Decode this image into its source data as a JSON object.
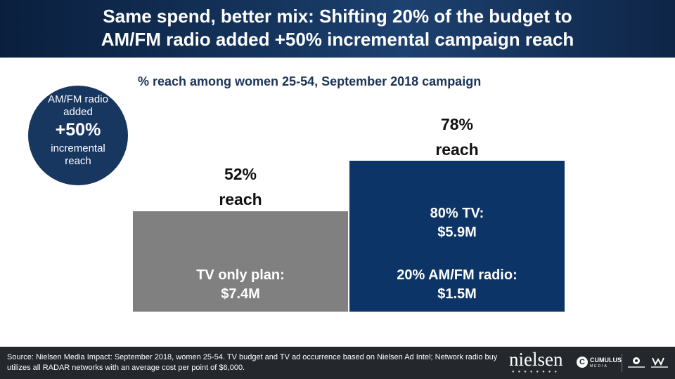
{
  "header": {
    "title_line1": "Same spend, better mix: Shifting 20% of the budget to",
    "title_line2": "AM/FM radio added +50% incremental campaign reach"
  },
  "callout": {
    "line1": "AM/FM radio",
    "line2": "added",
    "big": "+50%",
    "line3": "incremental",
    "line4": "reach"
  },
  "chart_data": {
    "type": "bar",
    "title": "% reach among women 25-54, September 2018 campaign",
    "categories": [
      "TV only plan",
      "80% TV / 20% AM/FM radio"
    ],
    "values": [
      52,
      78
    ],
    "ylim": [
      0,
      100
    ],
    "bars": [
      {
        "reach_value_label": "52%",
        "reach_word": "reach",
        "inside_lines": [
          "TV only plan:",
          "$7.4M"
        ]
      },
      {
        "reach_value_label": "78%",
        "reach_word": "reach",
        "inside_lines": [
          "80% TV:",
          "$5.9M",
          "20% AM/FM radio:",
          "$1.5M"
        ]
      }
    ],
    "colors": [
      "#808080",
      "#0d3466"
    ]
  },
  "footer": {
    "source": "Source: Nielsen Media Impact: September 2018, women 25-54. TV budget and TV ad occurrence based on Nielsen Ad Intel; Network radio buy utilizes all RADAR networks with an average cost per point of $6,000.",
    "nielsen_logo": "nielsen",
    "cumulus_logo": "CUMULUS",
    "cumulus_sub": "MEDIA",
    "cumulus_icon": "cumulus-c-mark",
    "partner_icons": [
      "cumulus-radio-logo",
      "westwood-one-logo"
    ]
  }
}
